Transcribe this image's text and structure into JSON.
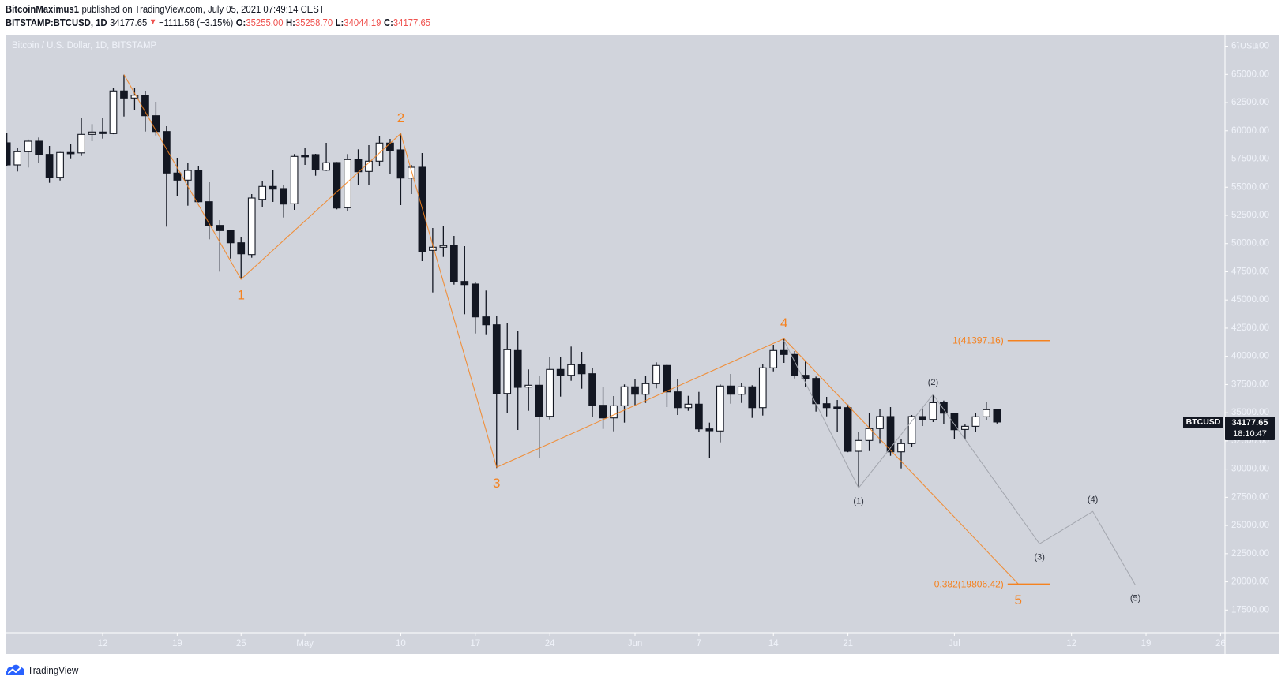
{
  "header": {
    "author": "BitcoinMaximus1",
    "published": "published on TradingView.com, July 05, 2021 07:49:14 CEST",
    "symbol": "BITSTAMP:BTCUSD, 1D",
    "last": "34177.65",
    "change_arrow": "▼",
    "change": "−1111.56 (−3.15%)",
    "ohlc": {
      "o_label": "O:",
      "o": "35255.00",
      "h_label": "H:",
      "h": "35258.70",
      "l_label": "L:",
      "l": "34044.19",
      "c_label": "C:",
      "c": "34177.65"
    }
  },
  "chart": {
    "title": "Bitcoin / U.S. Dollar, 1D, BITSTAMP",
    "currency": "USD",
    "price_tag": {
      "symbol": "BTCUSD",
      "price": "34177.65",
      "countdown": "18:10:47"
    }
  },
  "footer": {
    "brand": "TradingView",
    "logo_icon": "tradingview-cloud-icon"
  },
  "colors": {
    "background": "#d1d4dc",
    "up_body": "#ffffff",
    "down_body": "#131722",
    "wick": "#131722",
    "primary_wave": "#f5821f",
    "secondary_wave": "#a3a6ae",
    "secondary_label": "#2a2e39",
    "axis_line": "#ffffff",
    "axis_text": "#f0f3fa",
    "negative": "#ef5350",
    "brand_blue": "#2962ff"
  },
  "chart_data": {
    "type": "bar",
    "style": "candlestick",
    "title": "Bitcoin / U.S. Dollar, 1D, BITSTAMP",
    "xlabel": "",
    "ylabel": "USD",
    "ylim": [
      16000,
      68500
    ],
    "xlim": [
      "2021-04-03",
      "2021-07-29"
    ],
    "grid": false,
    "legend": "none",
    "last_price": 34177.65,
    "y_ticks": [
      67500,
      65000,
      62500,
      60000,
      57500,
      55000,
      52500,
      50000,
      47500,
      45000,
      42500,
      40000,
      37500,
      35000,
      32500,
      30000,
      27500,
      25000,
      22500,
      20000,
      17500
    ],
    "x_ticks": [
      {
        "label": "12",
        "date": "2021-04-12"
      },
      {
        "label": "19",
        "date": "2021-04-19"
      },
      {
        "label": "25",
        "date": "2021-04-25"
      },
      {
        "label": "May",
        "date": "2021-05-01"
      },
      {
        "label": "10",
        "date": "2021-05-10"
      },
      {
        "label": "17",
        "date": "2021-05-17"
      },
      {
        "label": "24",
        "date": "2021-05-24"
      },
      {
        "label": "Jun",
        "date": "2021-06-01"
      },
      {
        "label": "7",
        "date": "2021-06-07"
      },
      {
        "label": "14",
        "date": "2021-06-14"
      },
      {
        "label": "21",
        "date": "2021-06-21"
      },
      {
        "label": "Jul",
        "date": "2021-07-01"
      },
      {
        "label": "12",
        "date": "2021-07-12"
      },
      {
        "label": "19",
        "date": "2021-07-19"
      },
      {
        "label": "26",
        "date": "2021-07-26"
      }
    ],
    "candle_fields": [
      "date",
      "open",
      "high",
      "low",
      "close"
    ],
    "candles": [
      [
        "2021-04-03",
        58935,
        59774,
        56836,
        56976
      ],
      [
        "2021-04-04",
        56976,
        58466,
        56396,
        58145
      ],
      [
        "2021-04-05",
        58145,
        59236,
        56745,
        59075
      ],
      [
        "2021-04-06",
        59075,
        59404,
        57137,
        57907
      ],
      [
        "2021-04-07",
        57907,
        58655,
        55388,
        55878
      ],
      [
        "2021-04-08",
        55878,
        58120,
        55598,
        58075
      ],
      [
        "2021-04-09",
        58075,
        58844,
        57557,
        58040
      ],
      [
        "2021-04-10",
        58040,
        61173,
        57767,
        59683
      ],
      [
        "2021-04-11",
        59683,
        60593,
        59075,
        59893
      ],
      [
        "2021-04-12",
        59893,
        61173,
        59306,
        59753
      ],
      [
        "2021-04-13",
        59753,
        63762,
        59700,
        63531
      ],
      [
        "2021-04-14",
        63531,
        64970,
        61264,
        62901
      ],
      [
        "2021-04-15",
        62901,
        63811,
        61873,
        63153
      ],
      [
        "2021-04-16",
        63153,
        63552,
        59935,
        61334
      ],
      [
        "2021-04-17",
        61334,
        62573,
        59586,
        59935
      ],
      [
        "2021-04-18",
        59935,
        60404,
        51499,
        56256
      ],
      [
        "2021-04-19",
        56256,
        57606,
        54227,
        55626
      ],
      [
        "2021-04-20",
        55626,
        57137,
        53360,
        56487
      ],
      [
        "2021-04-21",
        56487,
        56836,
        53650,
        53710
      ],
      [
        "2021-04-22",
        53710,
        55437,
        50379,
        51611
      ],
      [
        "2021-04-23",
        51611,
        52079,
        47511,
        51149
      ],
      [
        "2021-04-24",
        51149,
        51200,
        48672,
        50071
      ],
      [
        "2021-04-25",
        50071,
        50610,
        46830,
        49092
      ],
      [
        "2021-04-26",
        49022,
        54388,
        48743,
        54038
      ],
      [
        "2021-04-27",
        53919,
        55507,
        53220,
        55066
      ],
      [
        "2021-04-28",
        55066,
        56487,
        53690,
        54830
      ],
      [
        "2021-04-29",
        54878,
        55206,
        52310,
        53499
      ],
      [
        "2021-04-30",
        53527,
        57934,
        52990,
        57725
      ],
      [
        "2021-05-01",
        57800,
        58515,
        56976,
        57700
      ],
      [
        "2021-05-02",
        57886,
        57955,
        56018,
        56578
      ],
      [
        "2021-05-03",
        56507,
        58935,
        56437,
        57165
      ],
      [
        "2021-05-04",
        57186,
        57235,
        53038,
        53150
      ],
      [
        "2021-05-05",
        53178,
        57934,
        52870,
        57445
      ],
      [
        "2021-05-06",
        57445,
        58354,
        55178,
        56368
      ],
      [
        "2021-05-07",
        56396,
        58725,
        55178,
        57305
      ],
      [
        "2021-05-08",
        57305,
        59564,
        56906,
        58914
      ],
      [
        "2021-05-09",
        58914,
        59285,
        56137,
        58256
      ],
      [
        "2021-05-10",
        58305,
        59754,
        53408,
        55808
      ],
      [
        "2021-05-11",
        55808,
        56976,
        54388,
        56766
      ],
      [
        "2021-05-12",
        56766,
        58025,
        48442,
        49302
      ],
      [
        "2021-05-13",
        49399,
        51380,
        45665,
        49680
      ],
      [
        "2021-05-14",
        49680,
        51520,
        48813,
        49820
      ],
      [
        "2021-05-15",
        49841,
        50680,
        46364,
        46644
      ],
      [
        "2021-05-16",
        46644,
        49771,
        43734,
        46364
      ],
      [
        "2021-05-17",
        46413,
        46602,
        42027,
        43496
      ],
      [
        "2021-05-18",
        43496,
        45833,
        41957,
        42796
      ],
      [
        "2021-05-19",
        42796,
        43615,
        30092,
        36710
      ],
      [
        "2021-05-20",
        36710,
        42985,
        34941,
        40586
      ],
      [
        "2021-05-21",
        40515,
        42285,
        33472,
        37249
      ],
      [
        "2021-05-22",
        37273,
        38838,
        35171,
        37437
      ],
      [
        "2021-05-23",
        37437,
        38298,
        31023,
        34681
      ],
      [
        "2021-05-24",
        34681,
        39957,
        34402,
        38838
      ],
      [
        "2021-05-25",
        38838,
        39957,
        36430,
        38319
      ],
      [
        "2021-05-26",
        38319,
        40866,
        37829,
        39256
      ],
      [
        "2021-05-27",
        39256,
        40397,
        37130,
        38459
      ],
      [
        "2021-05-28",
        38459,
        38929,
        34661,
        35660
      ],
      [
        "2021-05-29",
        35660,
        37319,
        33563,
        34542
      ],
      [
        "2021-05-30",
        34542,
        36479,
        33353,
        35611
      ],
      [
        "2021-05-31",
        35611,
        37508,
        34123,
        37298
      ],
      [
        "2021-06-01",
        37298,
        37948,
        35660,
        36640
      ],
      [
        "2021-06-02",
        36640,
        38228,
        35870,
        37577
      ],
      [
        "2021-06-03",
        37577,
        39467,
        37158,
        39186
      ],
      [
        "2021-06-04",
        39186,
        39256,
        35500,
        36850
      ],
      [
        "2021-06-05",
        36850,
        37948,
        34801,
        35450
      ],
      [
        "2021-06-06",
        35450,
        36500,
        35171,
        35758
      ],
      [
        "2021-06-07",
        35758,
        36850,
        33283,
        33563
      ],
      [
        "2021-06-08",
        33563,
        34123,
        30953,
        33400
      ],
      [
        "2021-06-09",
        33381,
        37508,
        32374,
        37368
      ],
      [
        "2021-06-10",
        37368,
        38438,
        35800,
        36640
      ],
      [
        "2021-06-11",
        36640,
        37669,
        35870,
        37298
      ],
      [
        "2021-06-12",
        37298,
        37438,
        34542,
        35450
      ],
      [
        "2021-06-13",
        35450,
        39347,
        34752,
        38978
      ],
      [
        "2021-06-14",
        38978,
        41027,
        38667,
        40516
      ],
      [
        "2021-06-15",
        40516,
        41565,
        39417,
        40166
      ],
      [
        "2021-06-16",
        40166,
        40466,
        38039,
        38319
      ],
      [
        "2021-06-17",
        38319,
        39536,
        37270,
        38039
      ],
      [
        "2021-06-18",
        38039,
        38200,
        35101,
        35800
      ],
      [
        "2021-06-19",
        35800,
        36409,
        34681,
        35450
      ],
      [
        "2021-06-20",
        35500,
        36130,
        33283,
        35450
      ],
      [
        "2021-06-21",
        35450,
        35730,
        31500,
        31582
      ],
      [
        "2021-06-22",
        31582,
        33332,
        28455,
        32541
      ],
      [
        "2021-06-23",
        32541,
        35011,
        31603,
        33591
      ],
      [
        "2021-06-24",
        33591,
        35290,
        32262,
        34661
      ],
      [
        "2021-06-25",
        34661,
        35500,
        31183,
        31533
      ],
      [
        "2021-06-26",
        31533,
        32702,
        30065,
        32262
      ],
      [
        "2021-06-27",
        32262,
        34801,
        31953,
        34661
      ],
      [
        "2021-06-28",
        34661,
        35381,
        33822,
        34402
      ],
      [
        "2021-06-29",
        34402,
        36619,
        34172,
        35891
      ],
      [
        "2021-06-30",
        35891,
        36081,
        33983,
        34962
      ],
      [
        "2021-07-01",
        34962,
        35000,
        32653,
        33493
      ],
      [
        "2021-07-02",
        33516,
        33955,
        32653,
        33795
      ],
      [
        "2021-07-03",
        33795,
        34941,
        33262,
        34640
      ],
      [
        "2021-07-04",
        34640,
        35920,
        34332,
        35269
      ],
      [
        "2021-07-05",
        35255.0,
        35258.7,
        34044.19,
        34177.65
      ]
    ],
    "annotations": {
      "primary_wave": {
        "name": "primary-wave-count",
        "points": [
          {
            "label": "",
            "date": "2021-04-14",
            "price": 64970,
            "pos": "above"
          },
          {
            "label": "1",
            "date": "2021-04-25",
            "price": 46830,
            "pos": "below"
          },
          {
            "label": "2",
            "date": "2021-05-10",
            "price": 59754,
            "pos": "above"
          },
          {
            "label": "3",
            "date": "2021-05-19",
            "price": 30160,
            "pos": "below"
          },
          {
            "label": "4",
            "date": "2021-06-15",
            "price": 41565,
            "pos": "above"
          },
          {
            "label": "5",
            "date": "2021-07-07",
            "price": 19806.42,
            "pos": "below"
          }
        ]
      },
      "secondary_wave": {
        "name": "sub-wave-count",
        "points": [
          {
            "label": "",
            "date": "2021-06-15",
            "price": 41400,
            "pos": "above"
          },
          {
            "label": "(1)",
            "date": "2021-06-22",
            "price": 28340,
            "pos": "below"
          },
          {
            "label": "(2)",
            "date": "2021-06-29",
            "price": 36619,
            "pos": "above"
          },
          {
            "label": "(3)",
            "date": "2021-07-09",
            "price": 23377,
            "pos": "below"
          },
          {
            "label": "(4)",
            "date": "2021-07-14",
            "price": 26245,
            "pos": "above"
          },
          {
            "label": "(5)",
            "date": "2021-07-18",
            "price": 19712,
            "pos": "below"
          }
        ]
      },
      "fib_levels": [
        {
          "ratio": "1",
          "price": 41397.16,
          "text": "1(41397.16)",
          "from": "2021-07-06",
          "to": "2021-07-10"
        },
        {
          "ratio": "0.382",
          "price": 19806.42,
          "text": "0.382(19806.42)",
          "from": "2021-07-06",
          "to": "2021-07-10"
        }
      ]
    }
  }
}
